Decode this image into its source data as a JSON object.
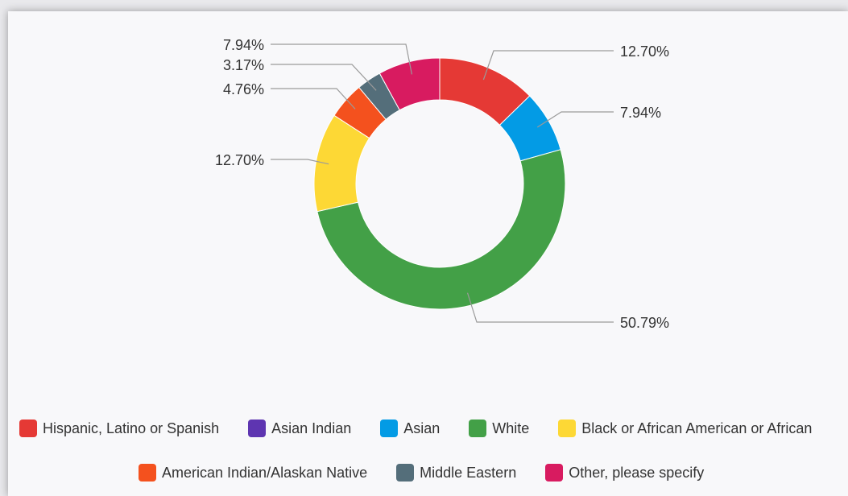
{
  "chart_data": {
    "type": "pie",
    "donut": true,
    "legend_position": "bottom",
    "series": [
      {
        "name": "Hispanic, Latino or Spanish",
        "value": 12.7,
        "label": "12.70%",
        "color": "#e53935"
      },
      {
        "name": "Asian Indian",
        "value": 0,
        "label": "",
        "color": "#5e35b1"
      },
      {
        "name": "Asian",
        "value": 7.94,
        "label": "7.94%",
        "color": "#039be5"
      },
      {
        "name": "White",
        "value": 50.79,
        "label": "50.79%",
        "color": "#43a047"
      },
      {
        "name": "Black or African American or African",
        "value": 12.7,
        "label": "12.70%",
        "color": "#fdd835"
      },
      {
        "name": "American Indian/Alaskan Native",
        "value": 4.76,
        "label": "4.76%",
        "color": "#f4511e"
      },
      {
        "name": "Middle Eastern",
        "value": 3.17,
        "label": "3.17%",
        "color": "#546e7a"
      },
      {
        "name": "Other, please specify",
        "value": 7.94,
        "label": "7.94%",
        "color": "#d81b60"
      }
    ]
  }
}
